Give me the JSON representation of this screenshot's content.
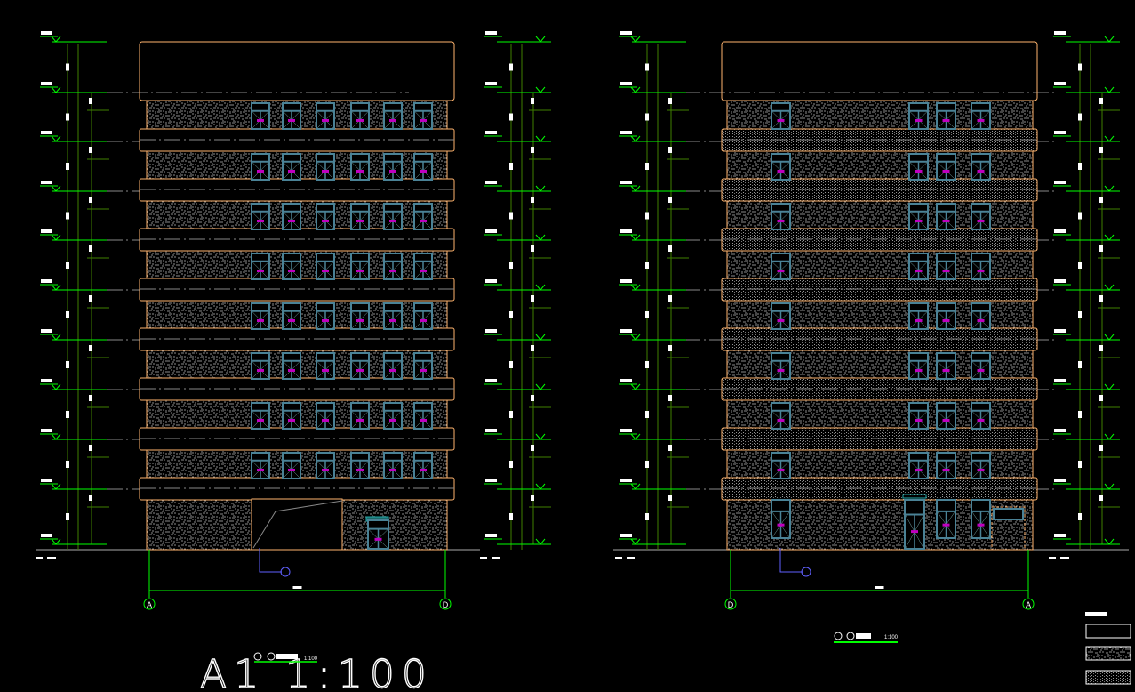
{
  "sheet": {
    "big_title": "A1 1:100"
  },
  "elevations": [
    {
      "grid_left": "A",
      "grid_right": "D",
      "scale": "1:100"
    },
    {
      "grid_left": "D",
      "grid_right": "A",
      "scale": "1:100"
    }
  ],
  "colors": {
    "background": "#000000",
    "outline": "#ffb46e",
    "dimension": "#00ff00",
    "dimension_dark": "#3f7f00",
    "window_frame": "#4a8296",
    "window_tag": "#c000c0",
    "texture": "#8a8a8a",
    "leader": "#6060ff",
    "text": "#ffffff"
  },
  "legend": {
    "swatches": [
      "plain",
      "stucco",
      "fine-dot"
    ]
  }
}
